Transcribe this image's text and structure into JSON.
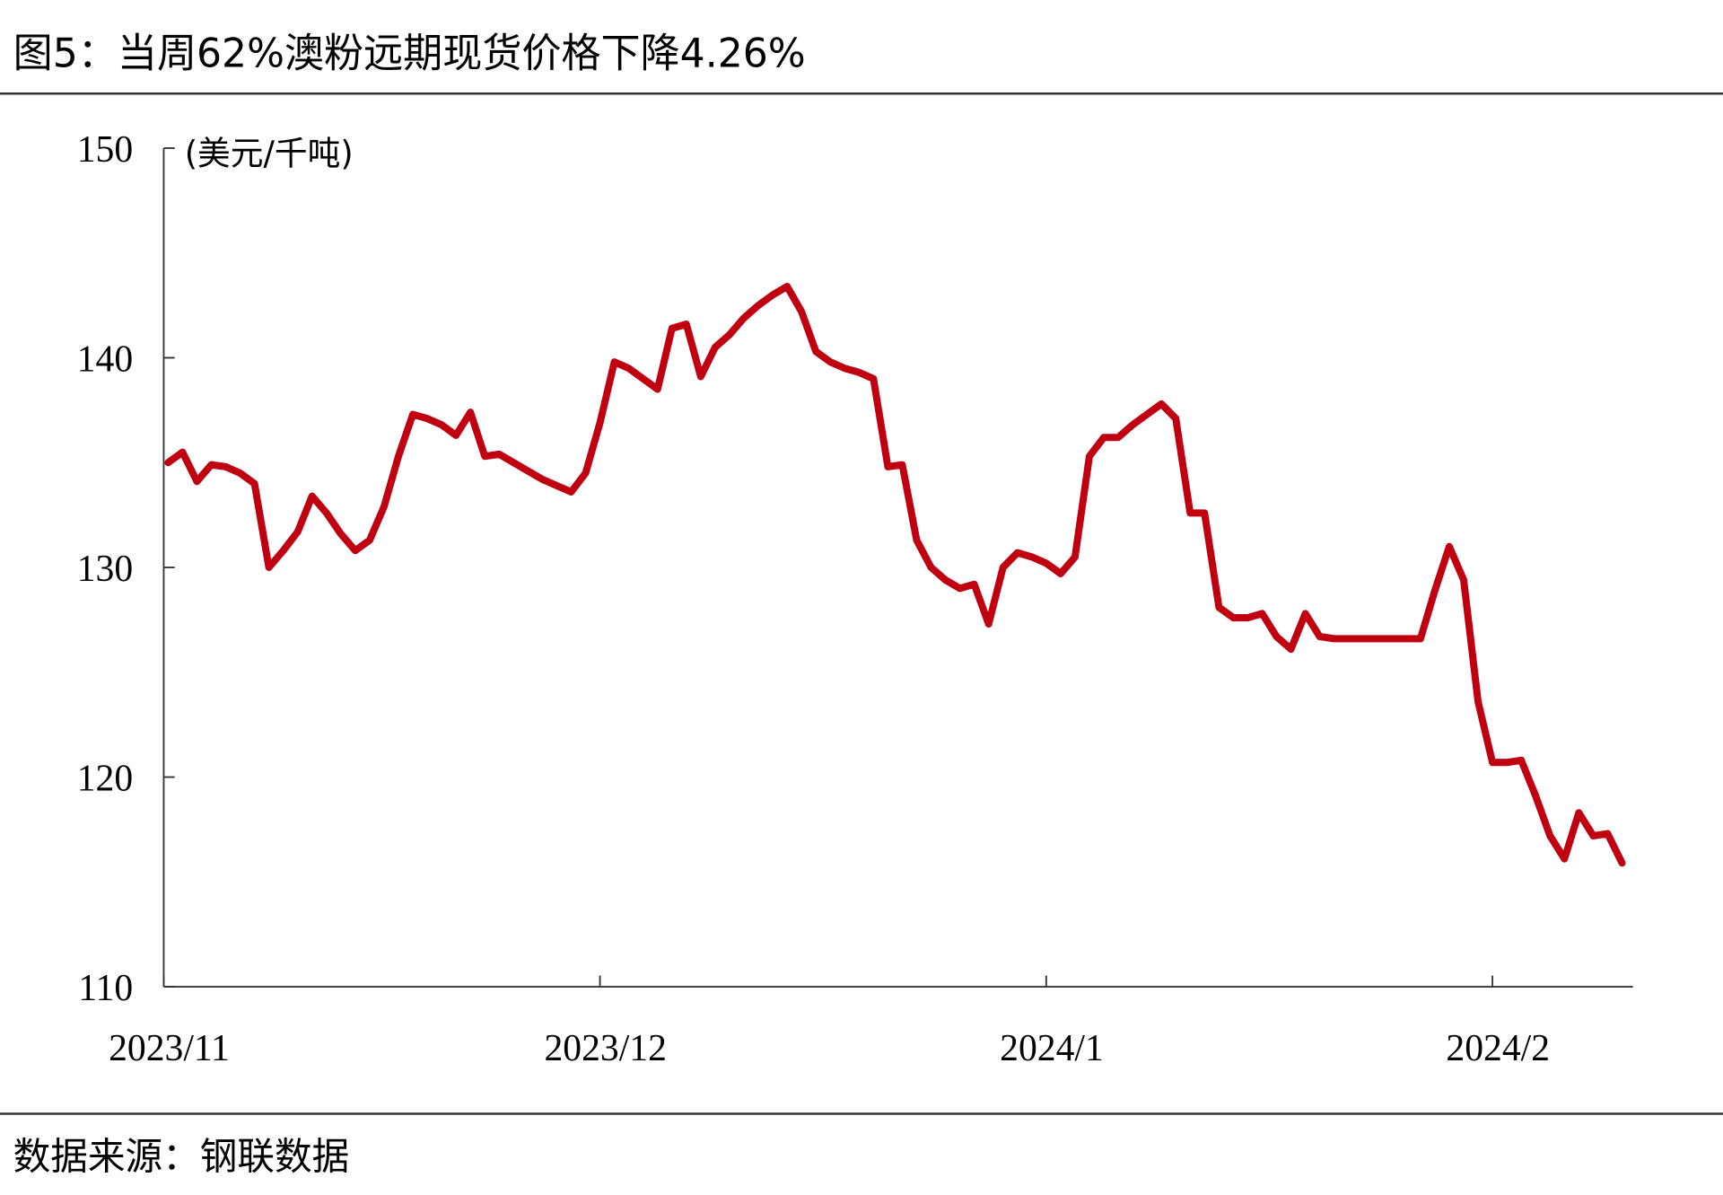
{
  "chart_data": {
    "type": "line",
    "title": "图5：当周62%澳粉远期现货价格下降4.26%",
    "y_label": "(美元/千吨)",
    "source": "数据来源：钢联数据",
    "categories": [
      "2023/11",
      null,
      null,
      null,
      null,
      null,
      null,
      null,
      null,
      null,
      null,
      null,
      null,
      null,
      null,
      null,
      null,
      null,
      null,
      null,
      null,
      null,
      null,
      null,
      null,
      null,
      null,
      null,
      null,
      null,
      "2023/12",
      null,
      null,
      null,
      null,
      null,
      null,
      null,
      null,
      null,
      null,
      null,
      null,
      null,
      null,
      null,
      null,
      null,
      null,
      null,
      null,
      null,
      null,
      null,
      null,
      null,
      null,
      null,
      null,
      null,
      null,
      "2024/1",
      null,
      null,
      null,
      null,
      null,
      null,
      null,
      null,
      null,
      null,
      null,
      null,
      null,
      null,
      null,
      null,
      null,
      null,
      null,
      null,
      null,
      null,
      null,
      null,
      null,
      null,
      null,
      null,
      null,
      null,
      "2024/2",
      null,
      null,
      null,
      null,
      null,
      null,
      null,
      null,
      null
    ],
    "series": [
      {
        "name": "62%澳粉远期现货价格",
        "color": "#c00010",
        "values": [
          135.0,
          135.5,
          134.1,
          134.9,
          134.8,
          134.5,
          134.0,
          130.0,
          130.8,
          131.7,
          133.4,
          132.6,
          131.6,
          130.8,
          131.3,
          132.9,
          135.3,
          137.3,
          137.1,
          136.8,
          136.3,
          137.4,
          135.3,
          135.4,
          135.0,
          134.6,
          134.2,
          133.9,
          133.6,
          134.5,
          136.9,
          139.8,
          139.5,
          139.0,
          138.5,
          141.4,
          141.6,
          139.1,
          140.5,
          141.1,
          141.9,
          142.5,
          143.0,
          143.4,
          142.2,
          140.3,
          139.8,
          139.5,
          139.3,
          139.0,
          134.8,
          134.9,
          131.3,
          130.0,
          129.4,
          129.0,
          129.2,
          127.3,
          130.0,
          130.7,
          130.5,
          130.2,
          129.7,
          130.5,
          135.3,
          136.2,
          136.2,
          136.8,
          137.3,
          137.8,
          137.1,
          132.6,
          132.6,
          128.1,
          127.6,
          127.6,
          127.8,
          126.7,
          126.1,
          127.8,
          126.7,
          126.6,
          126.6,
          126.6,
          126.6,
          126.6,
          126.6,
          126.6,
          128.9,
          131.0,
          129.4,
          123.6,
          120.7,
          120.7,
          120.8,
          119.1,
          117.2,
          116.1,
          118.3,
          117.2,
          117.3,
          115.9
        ]
      }
    ],
    "ylim": [
      110,
      150
    ],
    "yticks": [
      110,
      120,
      130,
      140,
      150
    ],
    "grid": false
  }
}
